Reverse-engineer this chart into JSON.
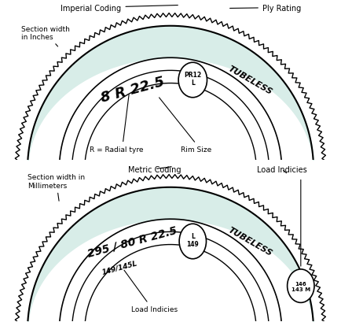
{
  "bg_color": "#ffffff",
  "tyre_fill_color": "#d8ede8",
  "tyre_border_color": "#000000",
  "title1": "Imperial Coding",
  "title2": "Ply Rating",
  "label_section_width_inches": "Section width\nin Inches",
  "label_r_radial": "R = Radial tyre",
  "label_rim_size": "Rim Size",
  "label_imperial_main": "8 R 22.5",
  "label_imperial_circle": "PR12\nL",
  "label_imperial_tubeless": "TUBELESS",
  "title3": "Metric Coding",
  "label_section_width_mm": "Section width in\nMillimeters",
  "label_load_indicies_top": "Load Indicies",
  "label_metric_main": "295 / 80 R 22.5",
  "label_metric_circle": "L\n149",
  "label_metric_tubeless": "TUBELESS",
  "label_metric_sub": "149/145L",
  "label_load_indicies_bottom": "Load Indicies",
  "label_metric_circle2": "146\n143 M"
}
